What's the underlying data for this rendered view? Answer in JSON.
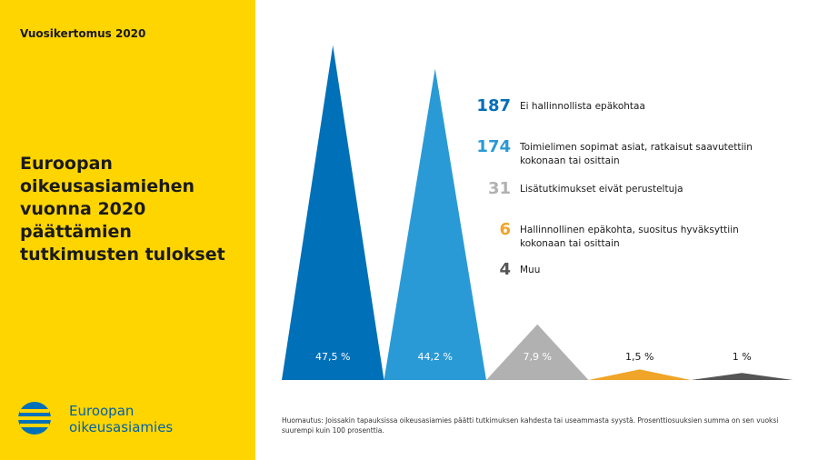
{
  "header": "Vuosikertomus 2020",
  "logo": "Euroopan oikeusasiamies",
  "note": "Huomautus: Joissakin tapauksissa oikeusasiamies päätti tutkimuksen kahdesta tai useammasta syystä. Prosenttiosuuksien summa on sen vuoksi suurempi kuin 100 prosenttia.",
  "chart_data": {
    "type": "triangle",
    "title": "Euroopan oikeusasiamiehen vuonna 2020 päättämien tutkimusten tulokset",
    "categories": [
      "Ei hallinnollista epäkohtaa",
      "Toimielimen sopimat asiat, ratkaisut saavutettiin kokonaan tai osittain",
      "Lisätutkimukset eivät perusteltuja",
      "Hallinnollinen epäkohta, suositus hyväksyttiin kokonaan tai osittain",
      "Muu"
    ],
    "counts": [
      187,
      174,
      31,
      6,
      4
    ],
    "values": [
      47.5,
      44.2,
      7.9,
      1.5,
      1
    ],
    "value_labels": [
      "47,5 %",
      "44,2 %",
      "7,9 %",
      "1,5 %",
      "1 %"
    ],
    "colors": [
      "#0070b8",
      "#2a9ad6",
      "#b1b1b1",
      "#f0a428",
      "#555555"
    ]
  }
}
